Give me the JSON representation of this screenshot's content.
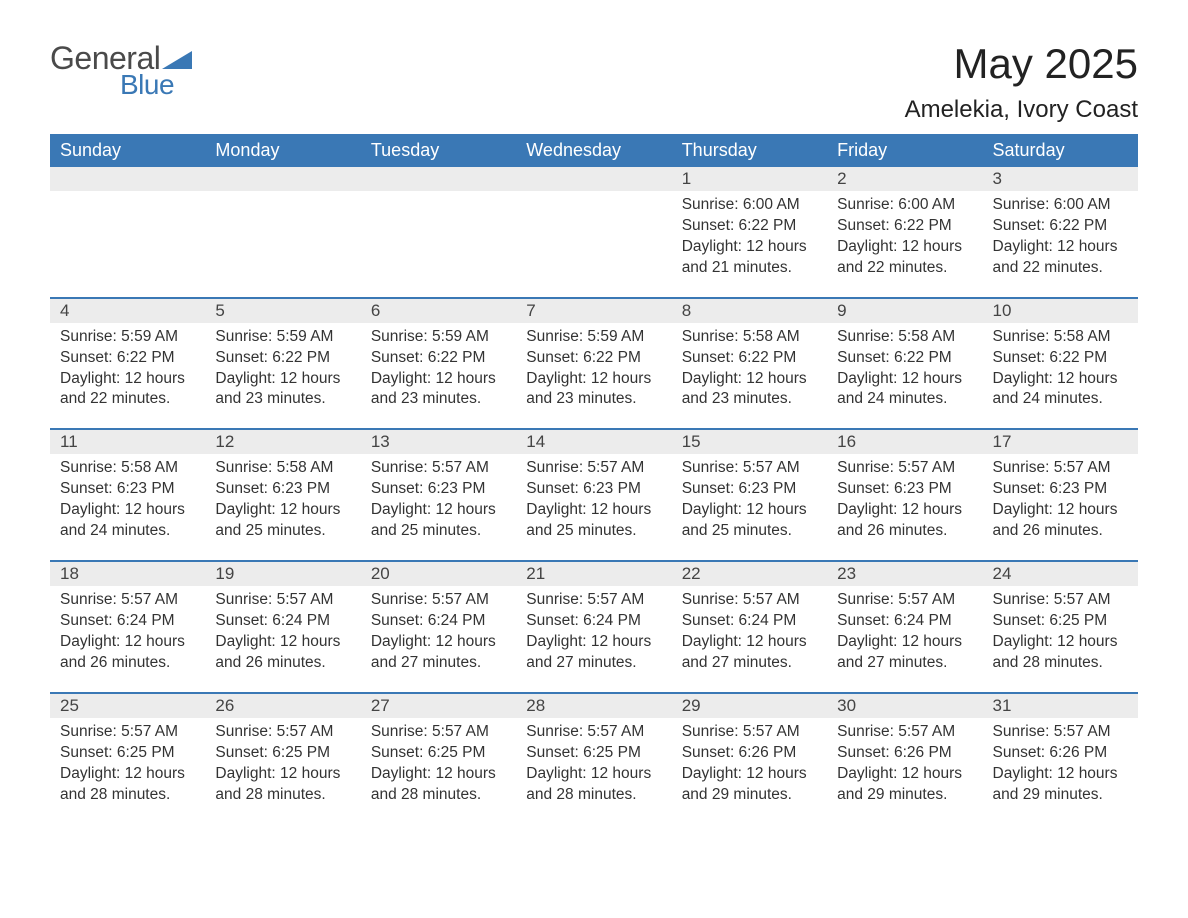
{
  "logo": {
    "word1": "General",
    "word2": "Blue",
    "text_color": "#4a4a4a",
    "accent_color": "#3a78b5"
  },
  "title": {
    "month": "May 2025",
    "location": "Amelekia, Ivory Coast"
  },
  "colors": {
    "header_bg": "#3a78b5",
    "header_text": "#ffffff",
    "daynum_bg": "#ececec",
    "daynum_text": "#444444",
    "body_text": "#333333",
    "rule": "#3a78b5",
    "page_bg": "#ffffff"
  },
  "font": {
    "family": "Arial",
    "header_size_pt": 14,
    "title_size_pt": 32,
    "location_size_pt": 18,
    "body_size_pt": 12
  },
  "weekdays": [
    "Sunday",
    "Monday",
    "Tuesday",
    "Wednesday",
    "Thursday",
    "Friday",
    "Saturday"
  ],
  "weeks": [
    [
      null,
      null,
      null,
      null,
      {
        "day": "1",
        "sunrise": "Sunrise: 6:00 AM",
        "sunset": "Sunset: 6:22 PM",
        "daylight1": "Daylight: 12 hours",
        "daylight2": "and 21 minutes."
      },
      {
        "day": "2",
        "sunrise": "Sunrise: 6:00 AM",
        "sunset": "Sunset: 6:22 PM",
        "daylight1": "Daylight: 12 hours",
        "daylight2": "and 22 minutes."
      },
      {
        "day": "3",
        "sunrise": "Sunrise: 6:00 AM",
        "sunset": "Sunset: 6:22 PM",
        "daylight1": "Daylight: 12 hours",
        "daylight2": "and 22 minutes."
      }
    ],
    [
      {
        "day": "4",
        "sunrise": "Sunrise: 5:59 AM",
        "sunset": "Sunset: 6:22 PM",
        "daylight1": "Daylight: 12 hours",
        "daylight2": "and 22 minutes."
      },
      {
        "day": "5",
        "sunrise": "Sunrise: 5:59 AM",
        "sunset": "Sunset: 6:22 PM",
        "daylight1": "Daylight: 12 hours",
        "daylight2": "and 23 minutes."
      },
      {
        "day": "6",
        "sunrise": "Sunrise: 5:59 AM",
        "sunset": "Sunset: 6:22 PM",
        "daylight1": "Daylight: 12 hours",
        "daylight2": "and 23 minutes."
      },
      {
        "day": "7",
        "sunrise": "Sunrise: 5:59 AM",
        "sunset": "Sunset: 6:22 PM",
        "daylight1": "Daylight: 12 hours",
        "daylight2": "and 23 minutes."
      },
      {
        "day": "8",
        "sunrise": "Sunrise: 5:58 AM",
        "sunset": "Sunset: 6:22 PM",
        "daylight1": "Daylight: 12 hours",
        "daylight2": "and 23 minutes."
      },
      {
        "day": "9",
        "sunrise": "Sunrise: 5:58 AM",
        "sunset": "Sunset: 6:22 PM",
        "daylight1": "Daylight: 12 hours",
        "daylight2": "and 24 minutes."
      },
      {
        "day": "10",
        "sunrise": "Sunrise: 5:58 AM",
        "sunset": "Sunset: 6:22 PM",
        "daylight1": "Daylight: 12 hours",
        "daylight2": "and 24 minutes."
      }
    ],
    [
      {
        "day": "11",
        "sunrise": "Sunrise: 5:58 AM",
        "sunset": "Sunset: 6:23 PM",
        "daylight1": "Daylight: 12 hours",
        "daylight2": "and 24 minutes."
      },
      {
        "day": "12",
        "sunrise": "Sunrise: 5:58 AM",
        "sunset": "Sunset: 6:23 PM",
        "daylight1": "Daylight: 12 hours",
        "daylight2": "and 25 minutes."
      },
      {
        "day": "13",
        "sunrise": "Sunrise: 5:57 AM",
        "sunset": "Sunset: 6:23 PM",
        "daylight1": "Daylight: 12 hours",
        "daylight2": "and 25 minutes."
      },
      {
        "day": "14",
        "sunrise": "Sunrise: 5:57 AM",
        "sunset": "Sunset: 6:23 PM",
        "daylight1": "Daylight: 12 hours",
        "daylight2": "and 25 minutes."
      },
      {
        "day": "15",
        "sunrise": "Sunrise: 5:57 AM",
        "sunset": "Sunset: 6:23 PM",
        "daylight1": "Daylight: 12 hours",
        "daylight2": "and 25 minutes."
      },
      {
        "day": "16",
        "sunrise": "Sunrise: 5:57 AM",
        "sunset": "Sunset: 6:23 PM",
        "daylight1": "Daylight: 12 hours",
        "daylight2": "and 26 minutes."
      },
      {
        "day": "17",
        "sunrise": "Sunrise: 5:57 AM",
        "sunset": "Sunset: 6:23 PM",
        "daylight1": "Daylight: 12 hours",
        "daylight2": "and 26 minutes."
      }
    ],
    [
      {
        "day": "18",
        "sunrise": "Sunrise: 5:57 AM",
        "sunset": "Sunset: 6:24 PM",
        "daylight1": "Daylight: 12 hours",
        "daylight2": "and 26 minutes."
      },
      {
        "day": "19",
        "sunrise": "Sunrise: 5:57 AM",
        "sunset": "Sunset: 6:24 PM",
        "daylight1": "Daylight: 12 hours",
        "daylight2": "and 26 minutes."
      },
      {
        "day": "20",
        "sunrise": "Sunrise: 5:57 AM",
        "sunset": "Sunset: 6:24 PM",
        "daylight1": "Daylight: 12 hours",
        "daylight2": "and 27 minutes."
      },
      {
        "day": "21",
        "sunrise": "Sunrise: 5:57 AM",
        "sunset": "Sunset: 6:24 PM",
        "daylight1": "Daylight: 12 hours",
        "daylight2": "and 27 minutes."
      },
      {
        "day": "22",
        "sunrise": "Sunrise: 5:57 AM",
        "sunset": "Sunset: 6:24 PM",
        "daylight1": "Daylight: 12 hours",
        "daylight2": "and 27 minutes."
      },
      {
        "day": "23",
        "sunrise": "Sunrise: 5:57 AM",
        "sunset": "Sunset: 6:24 PM",
        "daylight1": "Daylight: 12 hours",
        "daylight2": "and 27 minutes."
      },
      {
        "day": "24",
        "sunrise": "Sunrise: 5:57 AM",
        "sunset": "Sunset: 6:25 PM",
        "daylight1": "Daylight: 12 hours",
        "daylight2": "and 28 minutes."
      }
    ],
    [
      {
        "day": "25",
        "sunrise": "Sunrise: 5:57 AM",
        "sunset": "Sunset: 6:25 PM",
        "daylight1": "Daylight: 12 hours",
        "daylight2": "and 28 minutes."
      },
      {
        "day": "26",
        "sunrise": "Sunrise: 5:57 AM",
        "sunset": "Sunset: 6:25 PM",
        "daylight1": "Daylight: 12 hours",
        "daylight2": "and 28 minutes."
      },
      {
        "day": "27",
        "sunrise": "Sunrise: 5:57 AM",
        "sunset": "Sunset: 6:25 PM",
        "daylight1": "Daylight: 12 hours",
        "daylight2": "and 28 minutes."
      },
      {
        "day": "28",
        "sunrise": "Sunrise: 5:57 AM",
        "sunset": "Sunset: 6:25 PM",
        "daylight1": "Daylight: 12 hours",
        "daylight2": "and 28 minutes."
      },
      {
        "day": "29",
        "sunrise": "Sunrise: 5:57 AM",
        "sunset": "Sunset: 6:26 PM",
        "daylight1": "Daylight: 12 hours",
        "daylight2": "and 29 minutes."
      },
      {
        "day": "30",
        "sunrise": "Sunrise: 5:57 AM",
        "sunset": "Sunset: 6:26 PM",
        "daylight1": "Daylight: 12 hours",
        "daylight2": "and 29 minutes."
      },
      {
        "day": "31",
        "sunrise": "Sunrise: 5:57 AM",
        "sunset": "Sunset: 6:26 PM",
        "daylight1": "Daylight: 12 hours",
        "daylight2": "and 29 minutes."
      }
    ]
  ]
}
